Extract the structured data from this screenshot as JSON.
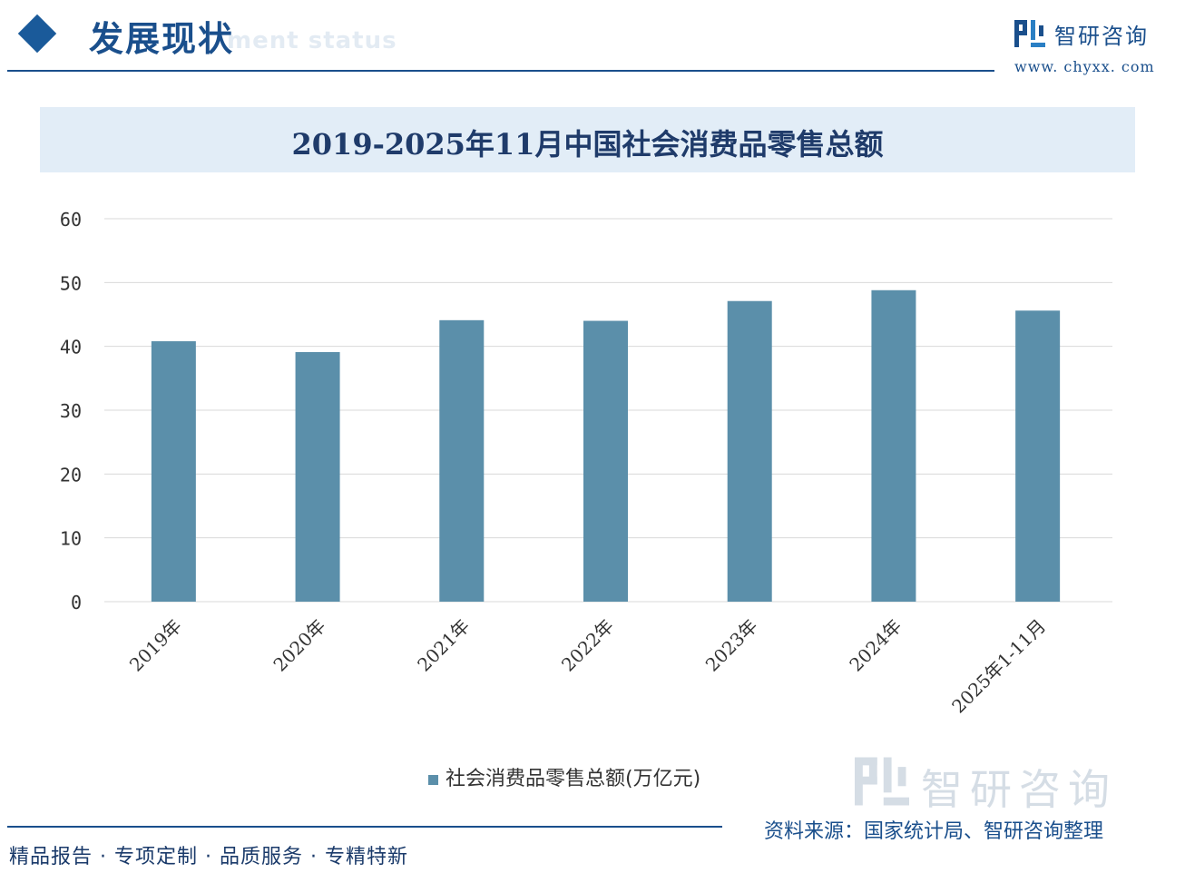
{
  "header": {
    "section_title": "发展现状",
    "section_subtitle": "ment status"
  },
  "brand": {
    "name": "智研咨询",
    "url": "www. chyxx. com"
  },
  "chart_data": {
    "type": "bar",
    "title": "2019-2025年11月中国社会消费品零售总额",
    "categories": [
      "2019年",
      "2020年",
      "2021年",
      "2022年",
      "2023年",
      "2024年",
      "2025年1-11月"
    ],
    "series": [
      {
        "name": "社会消费品零售总额(万亿元)",
        "values": [
          40.8,
          39.1,
          44.1,
          44.0,
          47.1,
          48.8,
          45.6
        ]
      }
    ],
    "y_ticks": [
      "0",
      "10",
      "20",
      "30",
      "40",
      "50",
      "60"
    ],
    "ylim": [
      0,
      60
    ],
    "xlabel": "",
    "ylabel": "",
    "grid": true,
    "legend_position": "bottom",
    "bar_color": "#5b8faa"
  },
  "footer": {
    "slogan": "精品报告 · 专项定制 · 品质服务 · 专精特新",
    "source": "资料来源：国家统计局、智研咨询整理"
  }
}
